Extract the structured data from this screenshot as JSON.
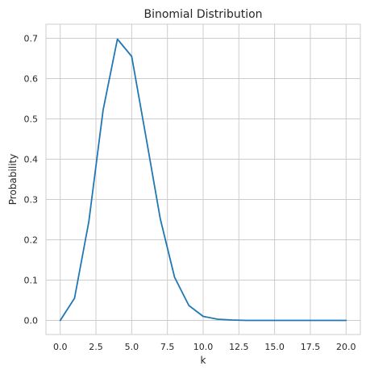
{
  "chart_data": {
    "type": "line",
    "title": "Binomial Distribution",
    "xlabel": "k",
    "ylabel": "Probability",
    "xlim": [
      -1.0,
      21.0
    ],
    "ylim": [
      -0.035,
      0.735
    ],
    "xticks": [
      0.0,
      2.5,
      5.0,
      7.5,
      10.0,
      12.5,
      15.0,
      17.5,
      20.0
    ],
    "xtick_labels": [
      "0.0",
      "2.5",
      "5.0",
      "7.5",
      "10.0",
      "12.5",
      "15.0",
      "17.5",
      "20.0"
    ],
    "yticks": [
      0.0,
      0.1,
      0.2,
      0.3,
      0.4,
      0.5,
      0.6,
      0.7
    ],
    "ytick_labels": [
      "0.0",
      "0.1",
      "0.2",
      "0.3",
      "0.4",
      "0.5",
      "0.6",
      "0.7"
    ],
    "grid": true,
    "series": [
      {
        "color": "#1f77b4",
        "x": [
          0,
          1,
          2,
          3,
          4,
          5,
          6,
          7,
          8,
          9,
          10,
          11,
          12,
          13,
          14,
          15,
          16,
          17,
          18,
          19,
          20
        ],
        "y": [
          0.0,
          0.055,
          0.245,
          0.522,
          0.698,
          0.655,
          0.455,
          0.252,
          0.107,
          0.037,
          0.01,
          0.003,
          0.001,
          0.0,
          0.0,
          0.0,
          0.0,
          0.0,
          0.0,
          0.0,
          0.0
        ]
      }
    ]
  },
  "colors": {
    "grid": "#cccccc",
    "spine": "#cccccc",
    "text": "#262626",
    "background": "#ffffff"
  }
}
